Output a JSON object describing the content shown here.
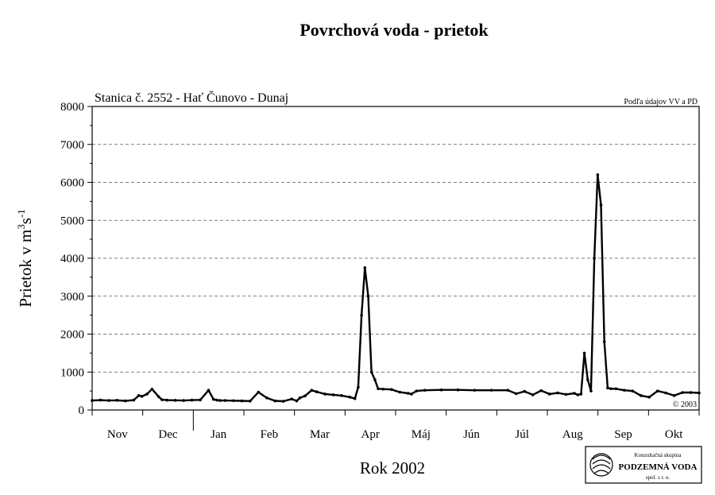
{
  "chart_data": {
    "type": "line",
    "title": "Povrchová voda - prietok",
    "subtitle": "Stanica č. 2552 - Hať Čunovo - Dunaj",
    "source_note": "Podľa údajov VV a PD",
    "copyright": "© 2003",
    "ylabel_main": "Prietok v m",
    "ylabel_sup1": "3",
    "ylabel_mid": "s",
    "ylabel_sup2": "-1",
    "xlabel": "Rok 2002",
    "ylim": [
      0,
      8000
    ],
    "yticks": [
      "0",
      "1000",
      "2000",
      "3000",
      "4000",
      "5000",
      "6000",
      "7000",
      "8000"
    ],
    "months": [
      "Nov",
      "Dec",
      "Jan",
      "Feb",
      "Mar",
      "Apr",
      "Máj",
      "Jún",
      "Júl",
      "Aug",
      "Sep",
      "Okt"
    ],
    "xlim": [
      0,
      365
    ],
    "grid": "horizontal dashed",
    "series": [
      {
        "x": [
          0,
          5,
          10,
          15,
          20,
          25,
          28,
          30,
          33,
          36,
          40,
          42,
          45,
          50,
          55,
          60,
          65,
          70,
          73,
          75,
          77,
          80,
          85,
          90,
          95,
          100,
          105,
          110,
          115,
          120,
          123,
          125,
          128,
          132,
          135,
          140,
          145,
          150,
          155,
          158,
          160,
          162,
          164,
          166,
          168,
          170,
          172,
          175,
          180,
          185,
          190,
          192,
          195,
          200,
          210,
          220,
          230,
          240,
          250,
          255,
          260,
          265,
          270,
          275,
          280,
          285,
          290,
          292,
          294,
          296,
          298,
          300,
          302,
          304,
          306,
          308,
          310,
          312,
          315,
          320,
          325,
          330,
          335,
          340,
          345,
          350,
          355,
          360,
          365
        ],
        "y": [
          250,
          260,
          250,
          255,
          240,
          260,
          380,
          360,
          420,
          550,
          350,
          270,
          260,
          255,
          250,
          260,
          265,
          520,
          280,
          260,
          250,
          250,
          245,
          240,
          235,
          470,
          320,
          240,
          230,
          290,
          240,
          320,
          370,
          520,
          480,
          420,
          400,
          380,
          340,
          300,
          600,
          2500,
          3750,
          3000,
          1000,
          800,
          560,
          550,
          540,
          470,
          440,
          420,
          500,
          520,
          530,
          530,
          520,
          520,
          520,
          430,
          490,
          400,
          510,
          420,
          450,
          410,
          440,
          400,
          420,
          1500,
          800,
          500,
          4000,
          6200,
          5400,
          1800,
          580,
          560,
          560,
          520,
          500,
          380,
          340,
          500,
          450,
          380,
          460,
          460,
          450
        ]
      }
    ]
  },
  "logo": {
    "line1": "Konzultačná skupina",
    "line2": "PODZEMNÁ VODA",
    "line3": "spol. s r. o."
  }
}
